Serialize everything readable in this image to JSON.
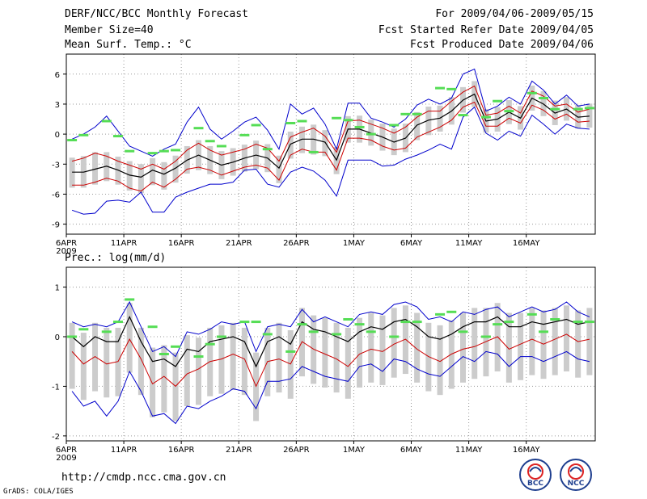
{
  "header": {
    "title": "DERF/NCC/BCC Monthly Forecast",
    "member_size": "Member Size=40",
    "variable": "Mean Surf. Temp.: °C",
    "period": "For 2009/04/06-2009/05/15",
    "start_date": "Fcst Started Refer Date 2009/04/05",
    "produced_date": "Fcst Produced Date 2009/04/06"
  },
  "footer": {
    "url": "http://cmdp.ncc.cma.gov.cn",
    "credit": "GrADS: COLA/IGES",
    "logo_left": "BCC",
    "logo_right": "NCC"
  },
  "colors": {
    "max_min": "#0000cc",
    "spread": "#cc0000",
    "mean": "#000000",
    "median": "#55dd55",
    "box": "#cccccc",
    "grid": "#999999"
  },
  "chart_data": [
    {
      "type": "box",
      "title": "Mean Surf. Temp.: °C",
      "x_ticks": [
        "6APR",
        "11APR",
        "16APR",
        "21APR",
        "26APR",
        "1MAY",
        "6MAY",
        "11MAY",
        "16MAY"
      ],
      "x_year": "2009",
      "ylim": [
        -10,
        8
      ],
      "y_ticks": [
        6,
        3,
        0,
        -3,
        -6,
        -9
      ],
      "series": [
        {
          "name": "max",
          "values": [
            -0.5,
            0,
            0.7,
            1.8,
            0.3,
            -1.2,
            -1.7,
            -2.2,
            -1.5,
            -1.0,
            1.2,
            2.7,
            0.5,
            -0.5,
            0.3,
            1.2,
            1.7,
            0.4,
            -1.5,
            3.0,
            2.0,
            2.6,
            1.0,
            -1.5,
            3.1,
            3.1,
            1.6,
            1.2,
            0.7,
            1.5,
            2.9,
            3.5,
            3.0,
            3.6,
            6.0,
            6.5,
            2.3,
            2.8,
            3.7,
            3.0,
            5.3,
            4.4,
            3.0,
            3.9,
            2.8,
            3.0
          ]
        },
        {
          "name": "max_spread",
          "values": [
            -2.7,
            -2.4,
            -1.9,
            -2.2,
            -2.7,
            -3.1,
            -3.5,
            -3.0,
            -3.5,
            -2.7,
            -1.6,
            -0.9,
            -1.6,
            -2.1,
            -1.8,
            -1.5,
            -1.0,
            -1.4,
            -2.7,
            -0.3,
            0.2,
            0.6,
            -0.2,
            -1.8,
            1.3,
            1.4,
            1.0,
            0.6,
            0.1,
            0.7,
            1.7,
            2.3,
            2.3,
            3.3,
            4.2,
            4.8,
            1.9,
            2.1,
            2.8,
            2.1,
            4.3,
            3.8,
            2.8,
            3.0,
            2.2,
            2.5
          ]
        },
        {
          "name": "mean",
          "values": [
            -3.8,
            -3.8,
            -3.5,
            -3.2,
            -3.6,
            -4.1,
            -4.3,
            -3.6,
            -4.0,
            -3.4,
            -2.6,
            -2.1,
            -2.6,
            -3.1,
            -2.8,
            -2.4,
            -2.1,
            -2.4,
            -3.4,
            -1.0,
            -0.5,
            -0.5,
            -0.8,
            -2.6,
            0.5,
            0.5,
            0.1,
            -0.3,
            -0.8,
            -0.4,
            0.9,
            1.4,
            1.6,
            2.3,
            3.4,
            4.0,
            1.3,
            1.5,
            2.2,
            1.6,
            3.6,
            3.0,
            2.1,
            2.5,
            1.7,
            1.8
          ]
        },
        {
          "name": "min_spread",
          "values": [
            -5.1,
            -5.1,
            -4.8,
            -4.4,
            -4.7,
            -5.4,
            -5.7,
            -4.8,
            -5.3,
            -4.5,
            -3.5,
            -3.3,
            -3.6,
            -4.1,
            -3.7,
            -3.3,
            -3.1,
            -3.4,
            -4.6,
            -2.1,
            -1.5,
            -1.8,
            -1.8,
            -3.6,
            -0.4,
            -0.4,
            -0.6,
            -1.2,
            -1.6,
            -1.4,
            -0.3,
            0.2,
            0.7,
            1.4,
            2.7,
            3.2,
            0.8,
            0.8,
            1.6,
            1.1,
            2.9,
            2.4,
            1.5,
            2.0,
            1.2,
            1.3
          ]
        },
        {
          "name": "min",
          "values": [
            -7.6,
            -8.0,
            -7.9,
            -6.7,
            -6.6,
            -6.8,
            -5.8,
            -7.8,
            -7.8,
            -6.3,
            -5.8,
            -5.4,
            -5.0,
            -5.0,
            -4.8,
            -3.6,
            -3.5,
            -5.0,
            -5.3,
            -3.8,
            -3.3,
            -3.7,
            -4.6,
            -6.2,
            -2.6,
            -2.6,
            -2.6,
            -3.2,
            -3.1,
            -2.5,
            -2.1,
            -1.6,
            -1.0,
            -1.5,
            1.7,
            2.7,
            0.1,
            -0.6,
            0.3,
            -0.2,
            1.9,
            1.0,
            0.0,
            1.0,
            0.6,
            0.5
          ]
        },
        {
          "name": "median",
          "values": [
            -0.6,
            -0.1,
            1.3,
            -0.2,
            -1.7,
            -1.9,
            -1.7,
            -1.6,
            0.6,
            -0.7,
            -1.2,
            -0.1,
            0.9,
            -1.5,
            1.1,
            1.3,
            -1.8,
            1.6,
            1.4,
            0.7,
            0.0,
            0.9,
            2.0,
            2.0,
            4.6,
            4.5,
            1.9,
            1.7,
            3.3,
            2.3,
            4.1,
            3.6,
            2.5,
            2.5,
            2.6
          ]
        }
      ]
    },
    {
      "type": "box",
      "title": "Prec.: log(mm/d)",
      "x_ticks": [
        "6APR",
        "11APR",
        "16APR",
        "21APR",
        "26APR",
        "1MAY",
        "6MAY",
        "11MAY",
        "16MAY"
      ],
      "x_year": "2009",
      "ylim": [
        -2.1,
        1.4
      ],
      "y_ticks": [
        1,
        0,
        -1,
        -2
      ],
      "series": [
        {
          "name": "max",
          "values": [
            0.3,
            0.2,
            0.25,
            0.2,
            0.3,
            0.7,
            0.2,
            -0.3,
            -0.2,
            -0.4,
            0.1,
            0.05,
            0.15,
            0.3,
            0.25,
            0.3,
            -0.3,
            0.2,
            0.25,
            0.2,
            0.55,
            0.3,
            0.4,
            0.3,
            0.2,
            0.45,
            0.5,
            0.45,
            0.65,
            0.7,
            0.6,
            0.35,
            0.4,
            0.3,
            0.5,
            0.45,
            0.55,
            0.6,
            0.4,
            0.5,
            0.6,
            0.5,
            0.55,
            0.7,
            0.5,
            0.4
          ]
        },
        {
          "name": "mean",
          "values": [
            0.0,
            -0.2,
            0.0,
            -0.1,
            -0.1,
            0.4,
            -0.1,
            -0.5,
            -0.45,
            -0.6,
            -0.25,
            -0.3,
            -0.1,
            -0.05,
            0.0,
            -0.1,
            -0.6,
            -0.1,
            0.0,
            -0.15,
            0.3,
            0.15,
            0.1,
            0.0,
            -0.1,
            0.1,
            0.2,
            0.15,
            0.3,
            0.35,
            0.2,
            0.0,
            -0.05,
            0.05,
            0.2,
            0.3,
            0.3,
            0.4,
            0.2,
            0.2,
            0.3,
            0.25,
            0.3,
            0.35,
            0.25,
            0.3
          ]
        },
        {
          "name": "min_spread",
          "values": [
            -0.3,
            -0.55,
            -0.4,
            -0.55,
            -0.5,
            -0.05,
            -0.45,
            -0.95,
            -0.8,
            -1.0,
            -0.75,
            -0.65,
            -0.5,
            -0.45,
            -0.35,
            -0.45,
            -1.0,
            -0.5,
            -0.45,
            -0.55,
            -0.1,
            -0.25,
            -0.35,
            -0.45,
            -0.6,
            -0.35,
            -0.25,
            -0.3,
            -0.15,
            -0.05,
            -0.25,
            -0.4,
            -0.5,
            -0.35,
            -0.25,
            -0.2,
            -0.1,
            0.0,
            -0.25,
            -0.15,
            -0.05,
            -0.15,
            -0.05,
            0.05,
            -0.1,
            -0.05
          ]
        },
        {
          "name": "min",
          "values": [
            -1.1,
            -1.4,
            -1.3,
            -1.6,
            -1.3,
            -0.7,
            -1.1,
            -1.6,
            -1.55,
            -1.75,
            -1.4,
            -1.45,
            -1.3,
            -1.2,
            -1.05,
            -1.1,
            -1.45,
            -0.9,
            -0.9,
            -0.85,
            -0.6,
            -0.7,
            -0.8,
            -0.85,
            -0.9,
            -0.6,
            -0.55,
            -0.7,
            -0.45,
            -0.5,
            -0.65,
            -0.75,
            -0.8,
            -0.6,
            -0.4,
            -0.5,
            -0.3,
            -0.35,
            -0.6,
            -0.4,
            -0.4,
            -0.5,
            -0.4,
            -0.3,
            -0.45,
            -0.5
          ]
        },
        {
          "name": "median",
          "values": [
            0.0,
            0.15,
            0.1,
            0.3,
            0.75,
            0.2,
            -0.35,
            -0.2,
            -0.4,
            -0.15,
            0.0,
            0.3,
            0.3,
            0.05,
            -0.3,
            0.25,
            0.1,
            0.05,
            0.35,
            0.25,
            0.1,
            0.0,
            0.3,
            0.3,
            0.45,
            0.5,
            0.1,
            0.0,
            0.25,
            0.3,
            0.45,
            0.1,
            0.35,
            0.3,
            0.3
          ]
        }
      ]
    }
  ]
}
